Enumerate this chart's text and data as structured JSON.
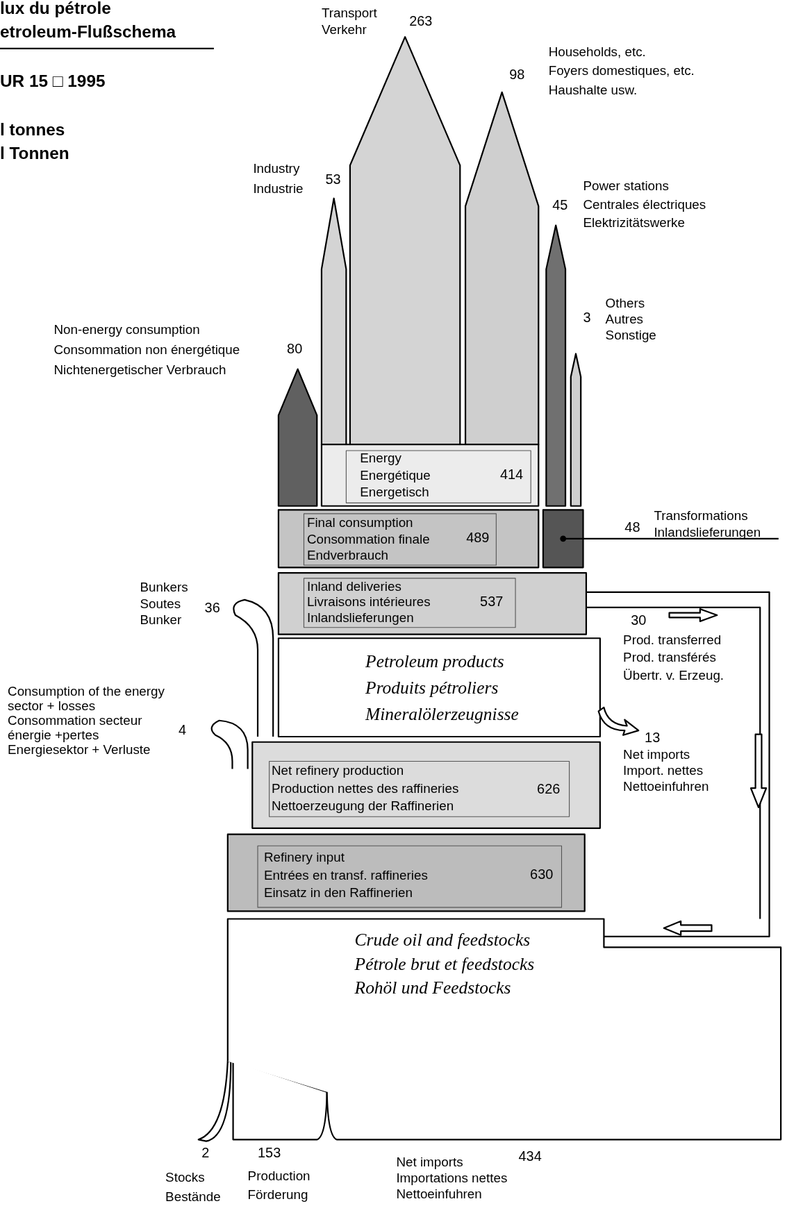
{
  "chart_data": {
    "type": "other",
    "title": "lux du pétrole\netroleum-Flußschema",
    "subtitle": "UR 15 □ 1995",
    "categories": [
      "Transport\nVerkehr",
      "Households, etc.\nFoyers domestiques, etc.\nHaushalte usw.",
      "Industry\nIndustrie",
      "Power stations\nCentrales électriques\nElektrizitätswerke",
      "Others\nAutres\nSonstige",
      "Non-energy consumption\nConsommation non énergétique\nNichtenergetischer Verbrauch",
      "Energy\nEnergétique\nEnergetisch",
      "Final consumption\nConsommation finale\nEndverbrauch",
      "Transformations\nInlandslieferungen",
      "Bunkers\nSoutes\nBunker",
      "Inland deliveries\nLivraisons intérieures\nInlandslieferungen",
      "Prod. transferred\nProd. transférés\nÜbertr. v. Erzeug.",
      "Net imports\nImport. nettes\nNettoeinfuhren",
      "Consumption of the energy\nsector + losses\nConsommation secteur\nénergie +pertes\nEnergiesektor + Verluste",
      "Net refinery production\nProduction nettes des raffineries\nNettoerzeugung der Raffinerien",
      "Refinery input\nEntrées en transf. raffineries\nEinsatz in den Raffinerien",
      "Stocks\nBestände",
      "Production\nFörderung",
      "Net imports\nImportations nettes\nNettoeinfuhren"
    ],
    "data_labels": true,
    "values": [
      263,
      98,
      53,
      45,
      3,
      80,
      414,
      489,
      48,
      36,
      537,
      30,
      13,
      4,
      626,
      630,
      2,
      153,
      434
    ],
    "colors": [
      "#d4d4d4",
      "#cfcfcf",
      "#d4d4d4",
      "#707070",
      "#d0d0d0",
      "#606060",
      "#ececec",
      "#c4c4c4",
      "#555555",
      "#ffffff",
      "#d0d0d0",
      "#ffffff",
      "#ffffff",
      "#ffffff",
      "#dcdcdc",
      "#bcbcbc",
      "#ffffff",
      "#ffffff",
      "#ffffff"
    ],
    "annotations": [
      "l tonnes\nl Tonnen",
      "Petroleum products\nProduits pétroliers\nMineralölerzeugnisse",
      "Crude oil and feedstocks\nPétrole brut et feedstocks\nRohöl und Feedstocks"
    ]
  }
}
